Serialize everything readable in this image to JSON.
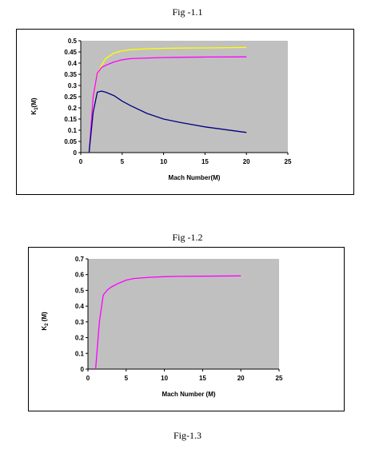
{
  "captions": {
    "fig1": "Fig -1.1",
    "fig2": "Fig -1.2",
    "fig3": "Fig-1.3"
  },
  "chart_data": [
    {
      "type": "line",
      "xlabel": "Mach Number(M)",
      "ylabel": "K1(M)",
      "xlim": [
        0,
        25
      ],
      "ylim": [
        0,
        0.5
      ],
      "xticks": [
        0,
        5,
        10,
        15,
        20,
        25
      ],
      "yticks": [
        0,
        0.05,
        0.1,
        0.15,
        0.2,
        0.25,
        0.3,
        0.35,
        0.4,
        0.45,
        0.5
      ],
      "plot_background": "#c0c0c0",
      "grid": false,
      "series": [
        {
          "color": "#ffff00",
          "x": [
            1,
            1.5,
            2,
            2.5,
            3,
            4,
            5,
            6,
            8,
            10,
            12,
            15,
            20
          ],
          "y": [
            0,
            0.25,
            0.35,
            0.39,
            0.42,
            0.445,
            0.455,
            0.46,
            0.464,
            0.466,
            0.467,
            0.468,
            0.47
          ]
        },
        {
          "color": "#ff00ff",
          "x": [
            1,
            1.5,
            2,
            2.5,
            3,
            4,
            5,
            6,
            8,
            10,
            12,
            15,
            20
          ],
          "y": [
            0,
            0.25,
            0.355,
            0.38,
            0.39,
            0.405,
            0.415,
            0.42,
            0.423,
            0.425,
            0.426,
            0.427,
            0.428
          ]
        },
        {
          "color": "#000080",
          "x": [
            1,
            1.5,
            2,
            2.5,
            3,
            4,
            5,
            6,
            8,
            10,
            12,
            15,
            20
          ],
          "y": [
            0,
            0.18,
            0.27,
            0.275,
            0.27,
            0.255,
            0.23,
            0.21,
            0.175,
            0.15,
            0.135,
            0.115,
            0.09
          ]
        }
      ]
    },
    {
      "type": "line",
      "xlabel": "Mach Number (M)",
      "ylabel": "K2 (M)",
      "xlim": [
        0,
        25
      ],
      "ylim": [
        0,
        0.7
      ],
      "xticks": [
        0,
        5,
        10,
        15,
        20,
        25
      ],
      "yticks": [
        0,
        0.1,
        0.2,
        0.3,
        0.4,
        0.5,
        0.6,
        0.7
      ],
      "plot_background": "#c0c0c0",
      "grid": false,
      "series": [
        {
          "color": "#ff00ff",
          "x": [
            1,
            1.5,
            2,
            2.5,
            3,
            4,
            5,
            6,
            8,
            10,
            12,
            15,
            20
          ],
          "y": [
            0,
            0.3,
            0.47,
            0.5,
            0.52,
            0.545,
            0.565,
            0.575,
            0.583,
            0.587,
            0.589,
            0.59,
            0.592
          ]
        }
      ]
    }
  ]
}
